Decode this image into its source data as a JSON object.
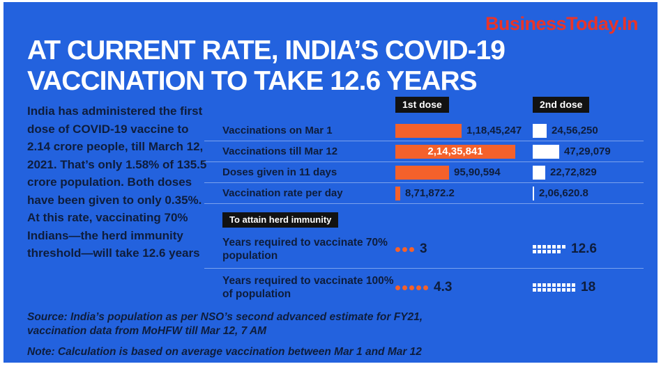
{
  "brand": {
    "logo_text": "BusinessToday.In",
    "logo_color": "#E8342A"
  },
  "headline": {
    "line1": "AT CURRENT RATE, INDIA’S COVID-19",
    "line2": "VACCINATION TO TAKE 12.6 YEARS"
  },
  "intro": "India has administered the first dose of COVID-19 vaccine to 2.14 crore people, till March 12, 2021. That’s only 1.58% of 135.5 crore population. Both doses have been given to only 0.35%. At this rate, vaccinating 70% Indians—the herd immunity threshold—will take 12.6 years",
  "legend": {
    "first": "1st dose",
    "second": "2nd dose"
  },
  "chart_data": {
    "type": "bar",
    "series": [
      {
        "name": "1st dose",
        "color": "#F4612B"
      },
      {
        "name": "2nd dose",
        "color": "#FFFFFF"
      }
    ],
    "rows": [
      {
        "label": "Vaccinations on Mar 1",
        "first_dose": 11845247,
        "first_label": "1,18,45,247",
        "second_dose": 2456250,
        "second_label": "24,56,250"
      },
      {
        "label": "Vaccinations till Mar 12",
        "first_dose": 21435841,
        "first_label": "2,14,35,841",
        "second_dose": 4729079,
        "second_label": "47,29,079"
      },
      {
        "label": "Doses given in 11 days",
        "first_dose": 9590594,
        "first_label": "95,90,594",
        "second_dose": 2272829,
        "second_label": "22,72,829"
      },
      {
        "label": "Vaccination rate per day",
        "first_dose": 871872.2,
        "first_label": "8,71,872.2",
        "second_dose": 206620.8,
        "second_label": "2,06,620.8"
      }
    ],
    "herd_chip": "To attain herd immunity",
    "herd_rows": [
      {
        "label": "Years required to vaccinate 70% population",
        "first_years": 3,
        "first_label": "3",
        "second_years": 12.6,
        "second_label": "12.6"
      },
      {
        "label": "Years required to vaccinate 100% of population",
        "first_years": 4.3,
        "first_label": "4.3",
        "second_years": 18,
        "second_label": "18"
      }
    ]
  },
  "footer": {
    "source": "Source: India’s population as per NSO’s second advanced estimate for FY21, vaccination data from MoHFW till Mar 12, 7 AM",
    "note": "Note: Calculation is based on average vaccination between Mar 1 and Mar 12"
  },
  "colors": {
    "background": "#2362DE",
    "accent_orange": "#F4612B",
    "text_dark": "#0E1D3C",
    "chip_black": "#121212"
  }
}
